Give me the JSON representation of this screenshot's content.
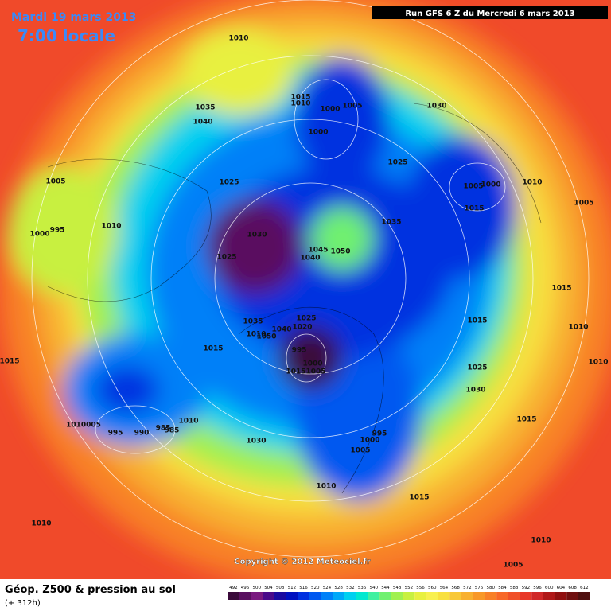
{
  "header": {
    "date": "Mardi 19 mars 2013",
    "time": "7:00 locale",
    "run": "Run GFS 6 Z du Mercredi 6 mars 2013"
  },
  "footer": {
    "title": "Géop. Z500 & pression au sol",
    "subtitle": "(+ 312h)",
    "copyright": "Copyright © 2012 Meteociel.fr"
  },
  "isobar_labels": [
    "1010",
    "1035",
    "1040",
    "1015",
    "1010",
    "1000",
    "1005",
    "1000",
    "1030",
    "1025",
    "1025",
    "1005",
    "1000",
    "995",
    "1010",
    "1030",
    "1025",
    "1045",
    "1040",
    "1050",
    "1035",
    "1000",
    "1005",
    "1010",
    "1015",
    "1005",
    "1015",
    "1010",
    "1015",
    "1010",
    "1015",
    "1035",
    "1015",
    "1010",
    "1050",
    "1040",
    "1025",
    "1020",
    "995",
    "1000",
    "1015",
    "1005",
    "1025",
    "1030",
    "1015",
    "995",
    "1000",
    "1005",
    "1010005",
    "995",
    "990",
    "985",
    "985",
    "1010",
    "1030",
    "1010",
    "1015",
    "1010",
    "1010",
    "1005"
  ],
  "scale": {
    "values": [
      492,
      496,
      500,
      504,
      508,
      512,
      516,
      520,
      524,
      528,
      532,
      536,
      540,
      544,
      548,
      552,
      556,
      560,
      564,
      568,
      572,
      576,
      580,
      584,
      588,
      592,
      596,
      600,
      604,
      608,
      612
    ],
    "colors": [
      "#3a0a3a",
      "#5a1060",
      "#7a1a80",
      "#4a0a8a",
      "#1a0aa0",
      "#0010c0",
      "#0030e0",
      "#0058f0",
      "#0080f8",
      "#00a8f8",
      "#00d0f0",
      "#00e8d0",
      "#40f0a0",
      "#70f070",
      "#a0f050",
      "#c8f040",
      "#e8f040",
      "#f8f050",
      "#f8e040",
      "#f8c838",
      "#f8b030",
      "#f89828",
      "#f88028",
      "#f86828",
      "#f05028",
      "#e83828",
      "#d02828",
      "#b01818",
      "#901010",
      "#701010",
      "#501010"
    ]
  }
}
